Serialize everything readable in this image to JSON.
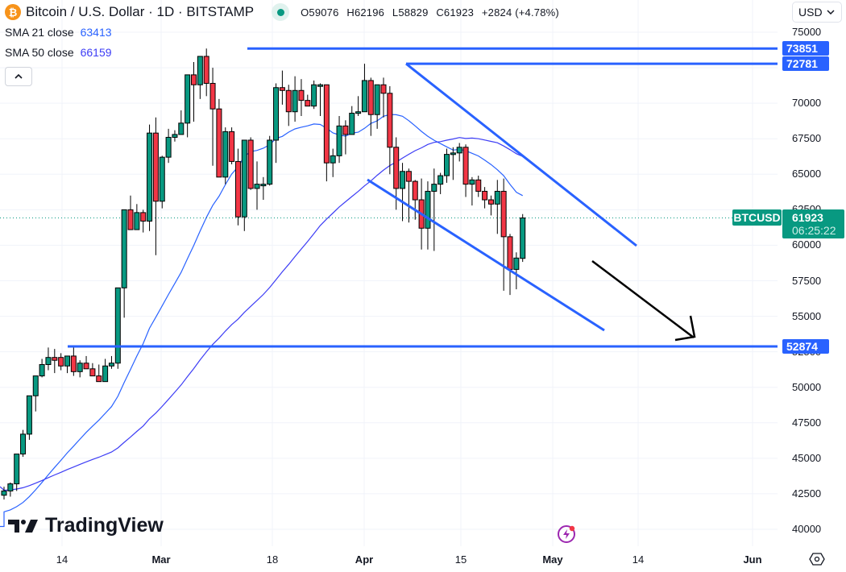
{
  "header": {
    "symbol_title": "Bitcoin / U.S. Dollar · 1D · BITSTAMP",
    "ohlc": {
      "open": "O59076",
      "high": "H62196",
      "low": "L58829",
      "close": "C61923",
      "change": "+2824 (+4.78%)"
    },
    "currency": "USD"
  },
  "indicators": [
    {
      "label": "SMA 21 close",
      "value": "63413",
      "color": "#2962ff"
    },
    {
      "label": "SMA 50 close",
      "value": "66159",
      "color": "#3d3df5"
    }
  ],
  "price_axis": {
    "ticks": [
      "75000",
      "72500",
      "70000",
      "67500",
      "65000",
      "62500",
      "60000",
      "57500",
      "55000",
      "52500",
      "50000",
      "47500",
      "45000",
      "42500",
      "40000"
    ],
    "level_tags": [
      "73851",
      "72781",
      "52874"
    ],
    "current_price": "61923",
    "countdown": "06:25:22",
    "symbol_tag": "BTCUSD"
  },
  "time_axis": {
    "labels": [
      {
        "text": "14",
        "bold": false
      },
      {
        "text": "Mar",
        "bold": true
      },
      {
        "text": "18",
        "bold": false
      },
      {
        "text": "Apr",
        "bold": true
      },
      {
        "text": "15",
        "bold": false
      },
      {
        "text": "May",
        "bold": true
      },
      {
        "text": "14",
        "bold": false
      },
      {
        "text": "Jun",
        "bold": true
      }
    ]
  },
  "branding": {
    "logo_text": "TradingView"
  },
  "colors": {
    "up": "#089981",
    "down": "#f23645",
    "drawing": "#2962ff",
    "sma21": "#2962ff",
    "sma50": "#3d3df5",
    "arrow": "#000000"
  },
  "chart_data": {
    "type": "candlestick",
    "title": "Bitcoin / U.S. Dollar · 1D · BITSTAMP",
    "xlabel": "",
    "ylabel": "USD",
    "ylim": [
      40000,
      75000
    ],
    "grid": true,
    "x": [
      "Feb 11",
      "Feb 12",
      "Feb 13",
      "Feb 14",
      "Feb 15",
      "Feb 16",
      "Feb 17",
      "Feb 18",
      "Feb 19",
      "Feb 20",
      "Feb 21",
      "Feb 22",
      "Feb 23",
      "Feb 24",
      "Feb 25",
      "Feb 26",
      "Feb 27",
      "Feb 28",
      "Feb 29",
      "Mar 1",
      "Mar 2",
      "Mar 3",
      "Mar 4",
      "Mar 5",
      "Mar 6",
      "Mar 7",
      "Mar 8",
      "Mar 9",
      "Mar 10",
      "Mar 11",
      "Mar 12",
      "Mar 13",
      "Mar 14",
      "Mar 15",
      "Mar 16",
      "Mar 17",
      "Mar 18",
      "Mar 19",
      "Mar 20",
      "Mar 21",
      "Mar 22",
      "Mar 23",
      "Mar 24",
      "Mar 25",
      "Mar 26",
      "Mar 27",
      "Mar 28",
      "Mar 29",
      "Mar 30",
      "Mar 31",
      "Apr 1",
      "Apr 2",
      "Apr 3",
      "Apr 4",
      "Apr 5",
      "Apr 6",
      "Apr 7",
      "Apr 8",
      "Apr 9",
      "Apr 10",
      "Apr 11",
      "Apr 12",
      "Apr 13",
      "Apr 14",
      "Apr 15",
      "Apr 16",
      "Apr 17",
      "Apr 18",
      "Apr 19",
      "Apr 20",
      "Apr 21",
      "Apr 22",
      "Apr 23",
      "Apr 24",
      "Apr 25",
      "Apr 26",
      "Apr 27",
      "Apr 28",
      "Apr 29",
      "Apr 30",
      "May 1",
      "May 2",
      "May 3"
    ],
    "ohlc": [
      [
        42400,
        43000,
        42100,
        42700
      ],
      [
        42700,
        43300,
        42300,
        43200
      ],
      [
        43200,
        44100,
        42700,
        45300
      ],
      [
        45300,
        47000,
        45100,
        46700
      ],
      [
        46700,
        49300,
        46300,
        49400
      ],
      [
        49400,
        50800,
        48300,
        50800
      ],
      [
        50800,
        52000,
        50700,
        51600
      ],
      [
        51600,
        52800,
        51200,
        52100
      ],
      [
        52100,
        52700,
        51000,
        51900
      ],
      [
        52100,
        52400,
        51200,
        51500
      ],
      [
        51500,
        52200,
        51000,
        52200
      ],
      [
        52200,
        52800,
        50800,
        51100
      ],
      [
        51100,
        51900,
        50700,
        51700
      ],
      [
        51700,
        52200,
        51400,
        51300
      ],
      [
        51300,
        51700,
        50800,
        50800
      ],
      [
        50800,
        51600,
        50500,
        50400
      ],
      [
        50400,
        52000,
        50500,
        51500
      ],
      [
        51500,
        52200,
        51300,
        51700
      ],
      [
        51700,
        54500,
        51300,
        57000
      ],
      [
        57000,
        57500,
        54900,
        62500
      ],
      [
        62500,
        63500,
        61100,
        61100
      ],
      [
        61100,
        62900,
        61200,
        62300
      ],
      [
        62300,
        62500,
        60900,
        61700
      ],
      [
        61700,
        68500,
        61000,
        67900
      ],
      [
        67900,
        69000,
        59300,
        63100
      ],
      [
        63100,
        66300,
        62600,
        66200
      ],
      [
        66200,
        68200,
        65800,
        67600
      ],
      [
        67600,
        68100,
        67300,
        67800
      ],
      [
        67800,
        69500,
        68000,
        68600
      ],
      [
        68600,
        71600,
        67600,
        72000
      ],
      [
        72000,
        72900,
        68700,
        71300
      ],
      [
        71300,
        73100,
        70300,
        73300
      ],
      [
        73300,
        73851,
        70500,
        71400
      ],
      [
        71400,
        72500,
        65600,
        69600
      ],
      [
        69600,
        70300,
        64800,
        64800
      ],
      [
        64800,
        68300,
        64300,
        68000
      ],
      [
        68000,
        68300,
        65700,
        65900
      ],
      [
        65900,
        66800,
        61400,
        62000
      ],
      [
        62000,
        67200,
        61000,
        67400
      ],
      [
        67400,
        67600,
        63900,
        64000
      ],
      [
        64000,
        65900,
        62500,
        64300
      ],
      [
        64300,
        64800,
        63200,
        64300
      ],
      [
        64300,
        67700,
        64200,
        67400
      ],
      [
        67400,
        71400,
        65800,
        71100
      ],
      [
        71100,
        72300,
        69900,
        70900
      ],
      [
        70900,
        71300,
        68400,
        69400
      ],
      [
        69400,
        71900,
        68700,
        70900
      ],
      [
        70900,
        71700,
        69100,
        70200
      ],
      [
        70200,
        70600,
        69800,
        69800
      ],
      [
        69800,
        71600,
        69600,
        71300
      ],
      [
        71300,
        71400,
        69100,
        71300
      ],
      [
        71300,
        71200,
        64500,
        65800
      ],
      [
        65800,
        66800,
        64800,
        66300
      ],
      [
        66300,
        69100,
        65800,
        68400
      ],
      [
        68400,
        68800,
        66400,
        67800
      ],
      [
        67800,
        69800,
        67800,
        69300
      ],
      [
        69300,
        70500,
        69100,
        69400
      ],
      [
        69400,
        72781,
        69600,
        71600
      ],
      [
        71600,
        71800,
        67700,
        69200
      ],
      [
        69200,
        71100,
        68200,
        71300
      ],
      [
        71300,
        71800,
        69000,
        70700
      ],
      [
        70700,
        71200,
        65000,
        66900
      ],
      [
        66900,
        67600,
        62500,
        64000
      ],
      [
        64000,
        65800,
        61700,
        65200
      ],
      [
        65200,
        65400,
        61600,
        64500
      ],
      [
        64500,
        64600,
        61800,
        63200
      ],
      [
        63200,
        64700,
        59700,
        61200
      ],
      [
        61200,
        64500,
        59700,
        63800
      ],
      [
        63800,
        65400,
        59600,
        64300
      ],
      [
        64300,
        65100,
        63600,
        64900
      ],
      [
        64900,
        66800,
        64400,
        66400
      ],
      [
        66400,
        66900,
        64600,
        66500
      ],
      [
        66500,
        67200,
        65900,
        66900
      ],
      [
        66900,
        67100,
        63400,
        64300
      ],
      [
        64300,
        64800,
        62800,
        64600
      ],
      [
        64600,
        64900,
        63400,
        63800
      ],
      [
        63800,
        64100,
        62600,
        63200
      ],
      [
        63200,
        63500,
        62100,
        62900
      ],
      [
        62900,
        64600,
        60800,
        63800
      ],
      [
        63800,
        64700,
        56800,
        60600
      ],
      [
        60600,
        60800,
        56500,
        58300
      ],
      [
        58300,
        59500,
        56900,
        59100
      ],
      [
        59076,
        62196,
        58829,
        61923
      ]
    ],
    "series": [
      {
        "name": "SMA 21 close",
        "last": 63413
      },
      {
        "name": "SMA 50 close",
        "last": 66159
      }
    ],
    "annotations": [
      {
        "type": "horizontal_ray",
        "price": 73851
      },
      {
        "type": "horizontal_ray",
        "price": 72781
      },
      {
        "type": "horizontal_ray",
        "price": 52874
      },
      {
        "type": "descending_channel",
        "upper": [
          [
            72781,
            "Apr 8"
          ],
          [
            59900,
            "May 14"
          ]
        ],
        "lower": [
          [
            64600,
            "Apr 1"
          ],
          [
            54200,
            "May 9"
          ]
        ]
      },
      {
        "type": "arrow",
        "direction": "down",
        "from": [
          59500,
          "May 7"
        ],
        "to": [
          52900,
          "May 22"
        ]
      }
    ]
  }
}
